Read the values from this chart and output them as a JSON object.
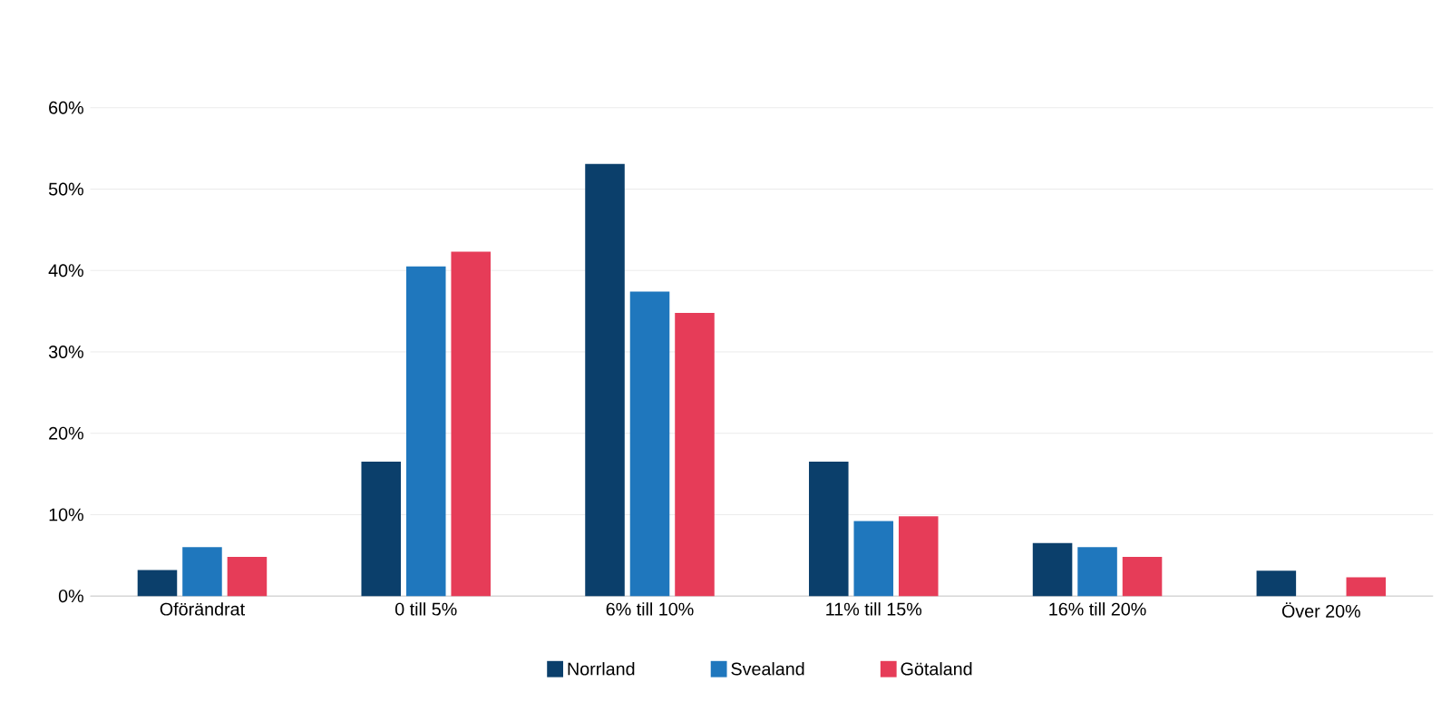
{
  "chart_data": {
    "type": "bar",
    "categories": [
      "Oförändrat",
      "0 till 5%",
      "6% till 10%",
      "11% till 15%",
      "16% till 20%",
      "Över 20%"
    ],
    "series": [
      {
        "name": "Norrland",
        "color": "#0b3f6b",
        "values": [
          3.2,
          16.5,
          53.1,
          16.5,
          6.5,
          3.1
        ]
      },
      {
        "name": "Svealand",
        "color": "#1f77bd",
        "values": [
          6.0,
          40.5,
          37.4,
          9.2,
          6.0,
          0
        ]
      },
      {
        "name": "Götaland",
        "color": "#e63c58",
        "values": [
          4.8,
          42.3,
          34.8,
          9.8,
          4.8,
          2.3
        ]
      }
    ],
    "ylim": [
      0,
      60
    ],
    "yticks": [
      {
        "value": 0,
        "label": "0%"
      },
      {
        "value": 10,
        "label": "10%"
      },
      {
        "value": 20,
        "label": "20%"
      },
      {
        "value": 30,
        "label": "30%"
      },
      {
        "value": 40,
        "label": "40%"
      },
      {
        "value": 50,
        "label": "50%"
      },
      {
        "value": 60,
        "label": "60%"
      }
    ],
    "grid": "y",
    "legend": "bottom"
  }
}
